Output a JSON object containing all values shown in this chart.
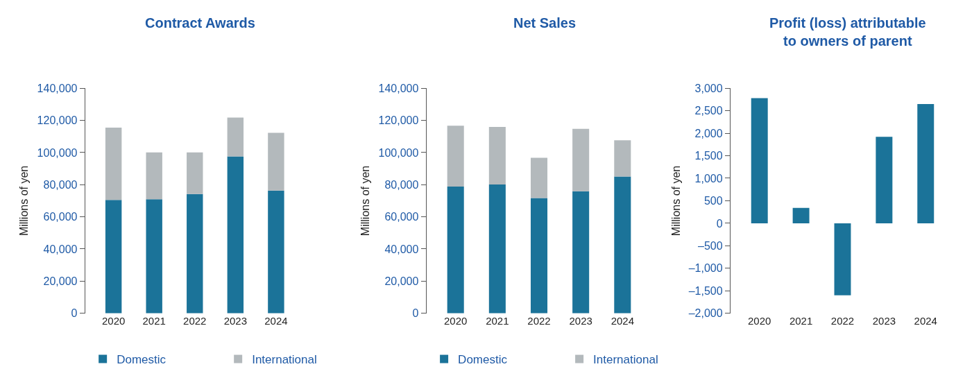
{
  "chart_data": [
    {
      "type": "bar",
      "title": "Contract Awards",
      "ylabel": "Millions of yen",
      "categories": [
        "2020",
        "2021",
        "2022",
        "2023",
        "2024"
      ],
      "stacked": true,
      "legend": "bottom",
      "ylim": [
        0,
        140000
      ],
      "yticks": [
        0,
        {
          "value": 20000,
          "label": "20,000"
        },
        {
          "value": 40000,
          "label": "40,000"
        },
        {
          "value": 60000,
          "label": "60,000"
        },
        {
          "value": 80000,
          "label": "80,000"
        },
        {
          "value": 100000,
          "label": "100,000"
        },
        {
          "value": 120000,
          "label": "120,000"
        },
        {
          "value": 140000,
          "label": "140,000"
        }
      ],
      "series": [
        {
          "name": "Domestic",
          "color": "#1b7399",
          "values": [
            70500,
            70900,
            74200,
            97600,
            76300
          ]
        },
        {
          "name": "International",
          "color": "#b3b9bc",
          "values": [
            45000,
            29200,
            25900,
            24100,
            35900
          ]
        }
      ]
    },
    {
      "type": "bar",
      "title": "Net Sales",
      "ylabel": "Millions of yen",
      "categories": [
        "2020",
        "2021",
        "2022",
        "2023",
        "2024"
      ],
      "stacked": true,
      "legend": "bottom",
      "ylim": [
        0,
        140000
      ],
      "yticks": [
        0,
        {
          "value": 20000,
          "label": "20,000"
        },
        {
          "value": 40000,
          "label": "40,000"
        },
        {
          "value": 60000,
          "label": "60,000"
        },
        {
          "value": 80000,
          "label": "80,000"
        },
        {
          "value": 100000,
          "label": "100,000"
        },
        {
          "value": 120000,
          "label": "120,000"
        },
        {
          "value": 140000,
          "label": "140,000"
        }
      ],
      "series": [
        {
          "name": "Domestic",
          "color": "#1b7399",
          "values": [
            78800,
            80100,
            71700,
            75900,
            85100
          ]
        },
        {
          "name": "International",
          "color": "#b3b9bc",
          "values": [
            37900,
            35800,
            25000,
            38800,
            22500
          ]
        }
      ]
    },
    {
      "type": "bar",
      "title": "Profit (loss) attributable to owners of parent",
      "ylabel": "Millions of yen",
      "categories": [
        "2020",
        "2021",
        "2022",
        "2023",
        "2024"
      ],
      "ylim": [
        -2000,
        3000
      ],
      "yticks": [
        {
          "value": -2000,
          "label": "–2,000"
        },
        {
          "value": -1500,
          "label": "–1,500"
        },
        {
          "value": -1000,
          "label": "–1,000"
        },
        {
          "value": -500,
          "label": "–500"
        },
        0,
        500,
        {
          "value": 1000,
          "label": "1,000"
        },
        {
          "value": 1500,
          "label": "1,500"
        },
        {
          "value": 2000,
          "label": "2,000"
        },
        {
          "value": 2500,
          "label": "2,500"
        },
        {
          "value": 3000,
          "label": "3,000"
        }
      ],
      "values": [
        2780,
        340,
        -1600,
        1920,
        2650
      ],
      "color": "#1b7399"
    }
  ]
}
